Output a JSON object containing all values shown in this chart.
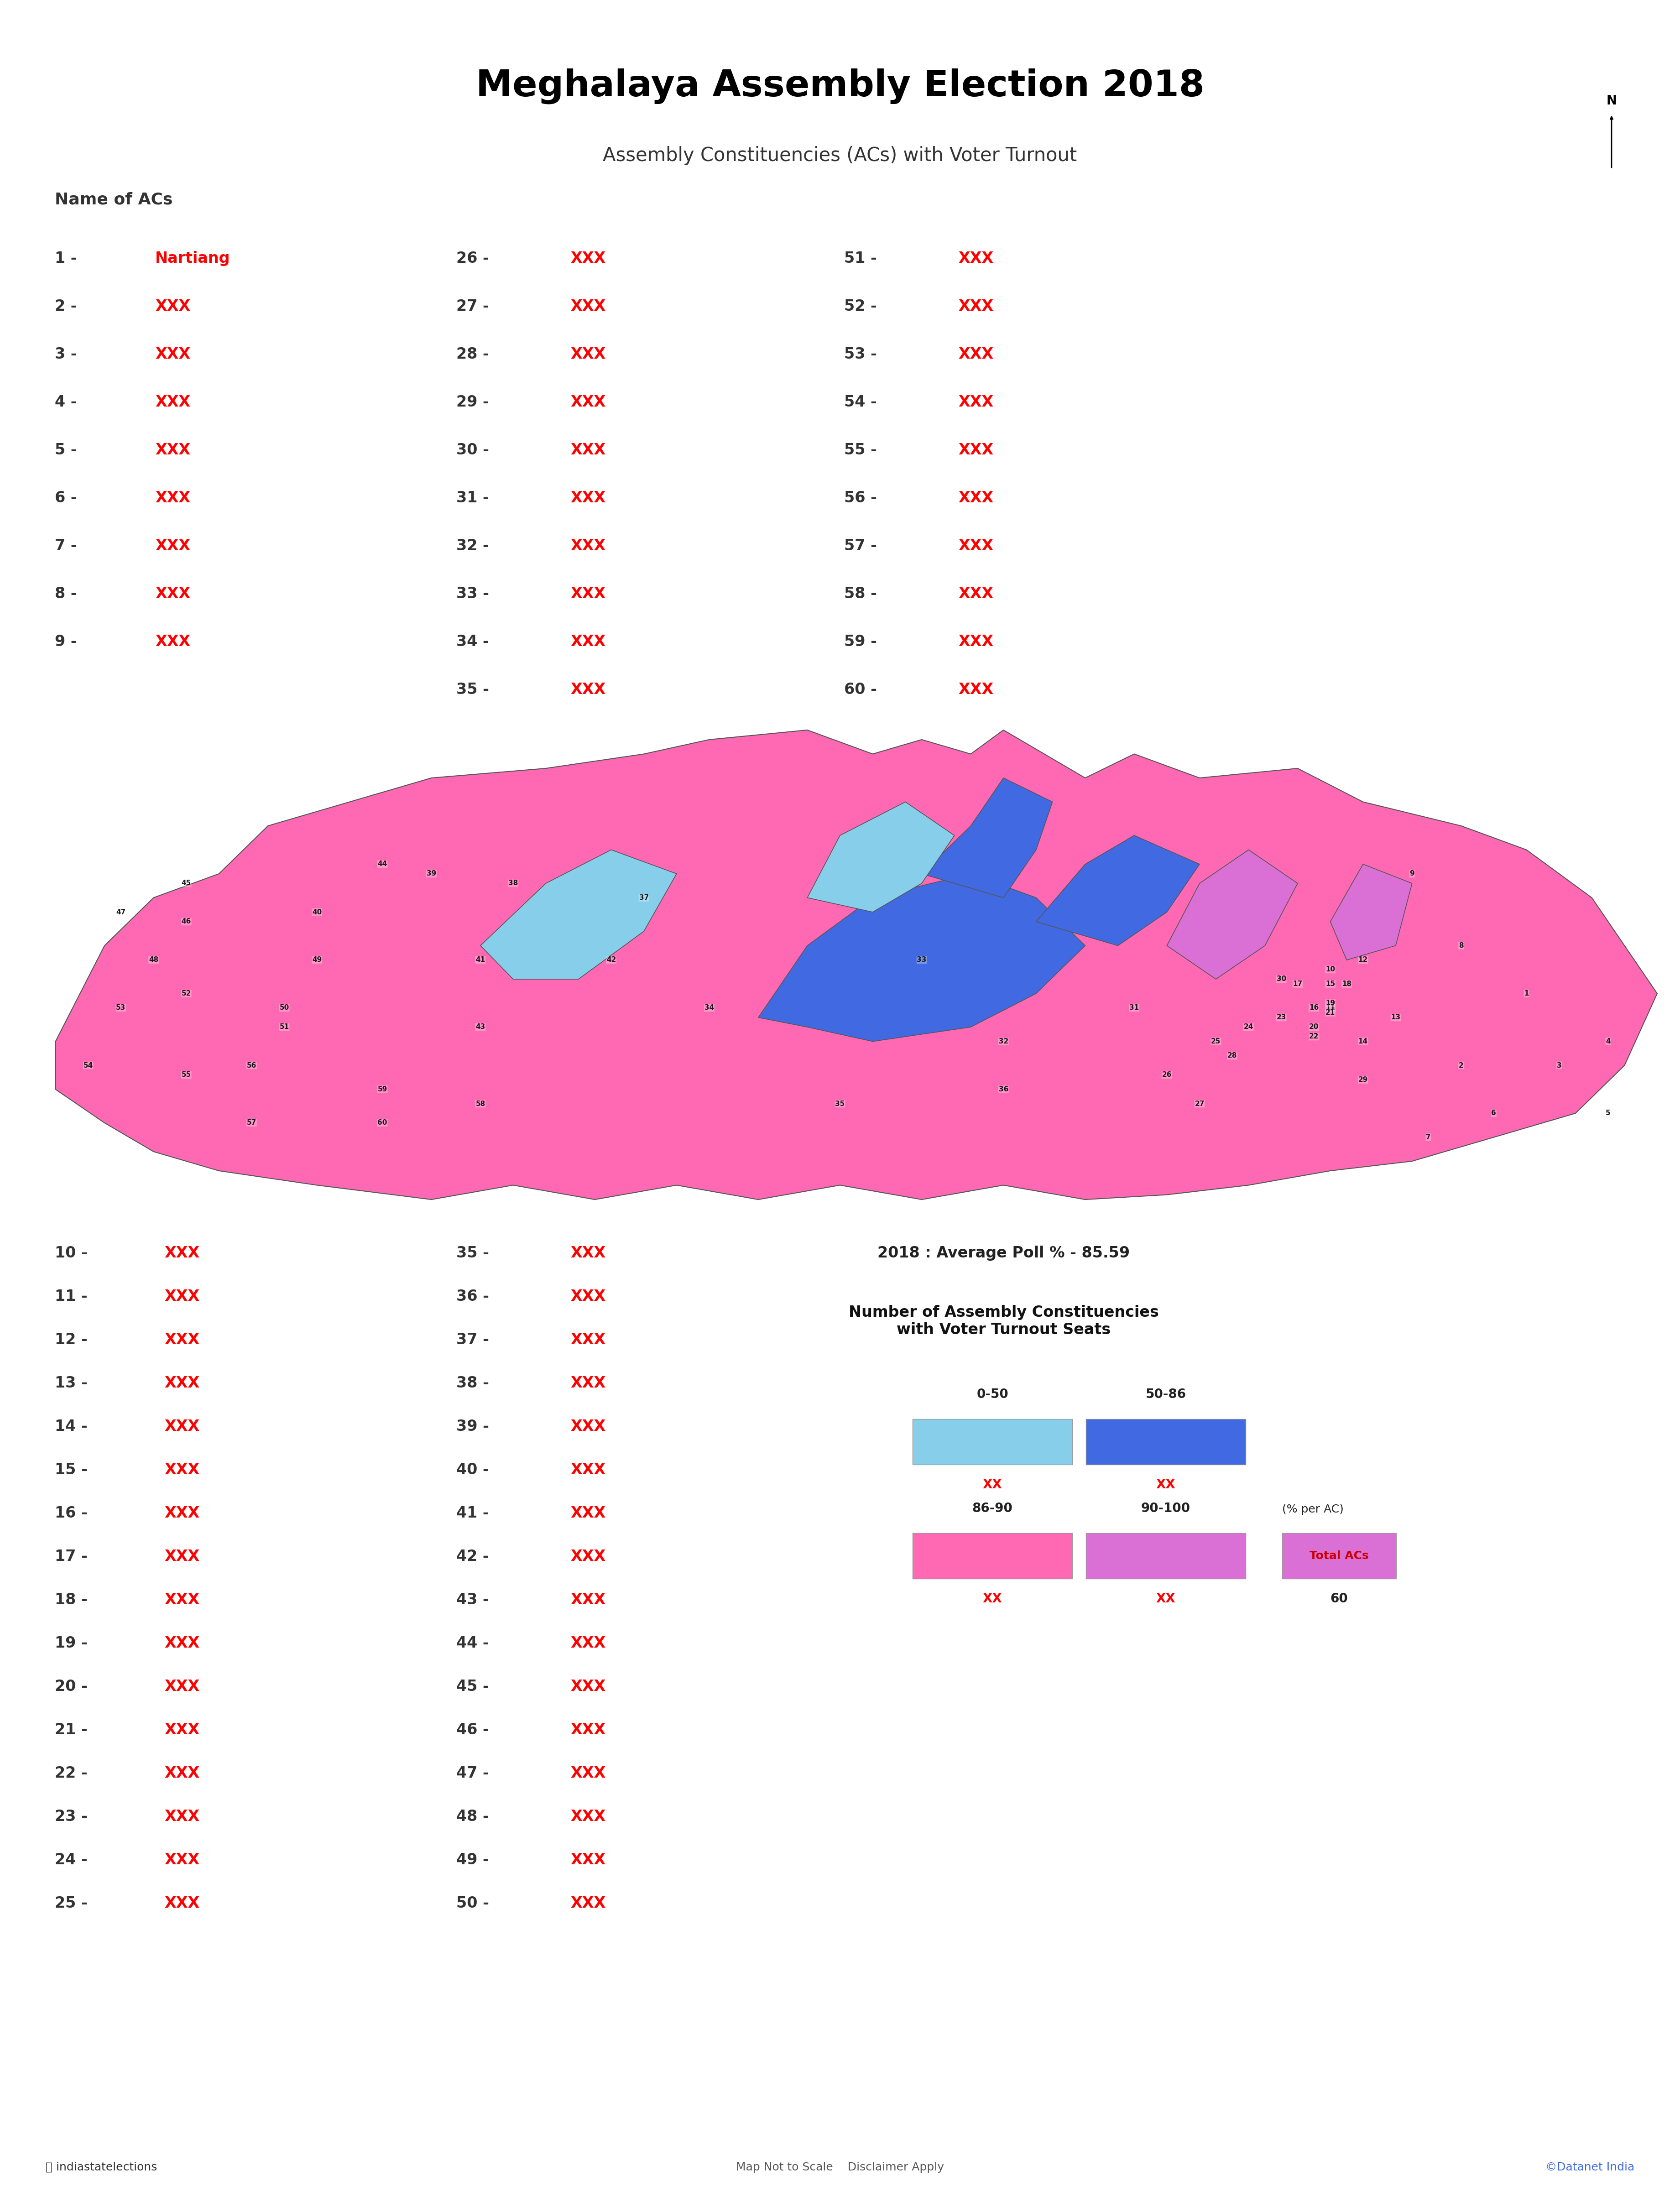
{
  "title": "Meghalaya Assembly Election 2018",
  "subtitle": "Assembly Constituencies (ACs) with Voter Turnout",
  "background_color": "#ffffff",
  "title_color": "#000000",
  "subtitle_color": "#333333",
  "name_of_acs_label": "Name of ACs",
  "ac_list_col1": [
    "1 - Nartiang",
    "2 - XXX",
    "3 - XXX",
    "4 - XXX",
    "5 - XXX",
    "6 - XXX",
    "7 - XXX",
    "8 - XXX",
    "9 - XXX"
  ],
  "ac_list_col2": [
    "26 - XXX",
    "27 - XXX",
    "28 - XXX",
    "29 - XXX",
    "30 - XXX",
    "31 - XXX",
    "32 - XXX",
    "33 - XXX",
    "34 - XXX",
    "35 - XXX"
  ],
  "ac_list_col3": [
    "51 - XXX",
    "52 - XXX",
    "53 - XXX",
    "54 - XXX",
    "55 - XXX",
    "56 - XXX",
    "57 - XXX",
    "58 - XXX",
    "59 - XXX",
    "60 - XXX"
  ],
  "ac_list_bottom_col1": [
    "10 - XXX",
    "11 - XXX",
    "12 - XXX",
    "13 - XXX",
    "14 - XXX",
    "15 - XXX",
    "16 - XXX",
    "17 - XXX",
    "18 - XXX",
    "19 - XXX",
    "20 - XXX",
    "21 - XXX",
    "22 - XXX",
    "23 - XXX",
    "24 - XXX",
    "25 - XXX"
  ],
  "ac_list_bottom_col2": [
    "35 - XXX",
    "36 - XXX",
    "37 - XXX",
    "38 - XXX",
    "39 - XXX",
    "40 - XXX",
    "41 - XXX",
    "42 - XXX",
    "43 - XXX",
    "44 - XXX",
    "45 - XXX",
    "46 - XXX",
    "47 - XXX",
    "48 - XXX",
    "49 - XXX",
    "50 - XXX"
  ],
  "avg_poll": "2018 : Average Poll % - 85.59",
  "legend_title": "Number of Assembly Constituencies\nwith Voter Turnout Seats",
  "legend_items": [
    {
      "range": "0-50",
      "color": "#add8e6"
    },
    {
      "range": "50-86",
      "color": "#4169E1"
    },
    {
      "range": "86-90",
      "color": "#FF69B4"
    },
    {
      "range": "90-100",
      "color": "#DA70D6"
    }
  ],
  "legend_xx_color": "#FF0000",
  "total_acs_label": "(% per AC)",
  "total_acs_value_label": "Total ACs",
  "total_acs_value": "60",
  "footer_left": "ⓘ indiastatelections",
  "footer_center": "Map Not to Scale    Disclaimer Apply",
  "footer_right": "©Datanet India",
  "number_color": "#333333",
  "xxx_color": "#FF0000",
  "nartiang_color": "#FF0000",
  "map_colors": {
    "light_blue": "#87CEEB",
    "medium_blue": "#4169E1",
    "pink": "#FF69B4",
    "violet": "#DA70D6"
  }
}
